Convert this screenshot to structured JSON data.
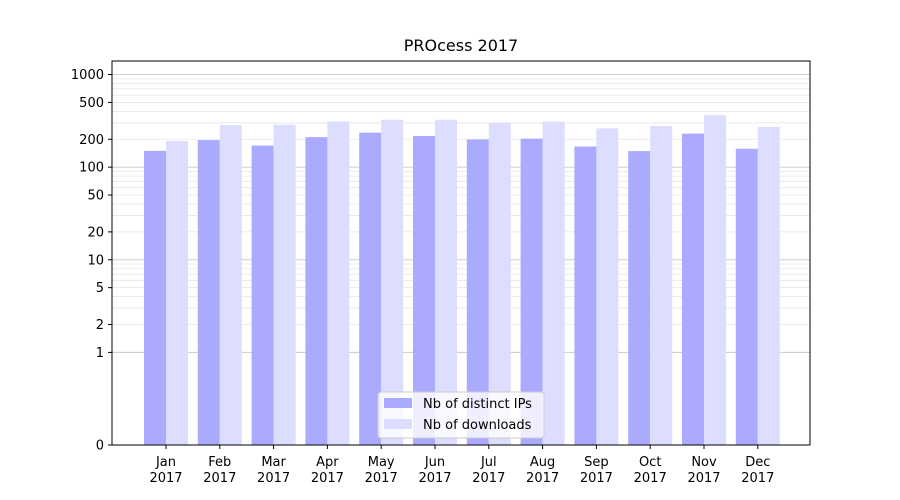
{
  "chart_data": {
    "type": "bar",
    "title": "PROcess 2017",
    "xlabel": "",
    "ylabel": "",
    "yscale": "symlog",
    "ylim": [
      0,
      1400
    ],
    "yticks": [
      0,
      1,
      2,
      5,
      10,
      20,
      50,
      100,
      200,
      500,
      1000
    ],
    "ytick_labels": [
      "0",
      "1",
      "2",
      "5",
      "10",
      "20",
      "50",
      "100",
      "200",
      "500",
      "1000"
    ],
    "grid": true,
    "legend_position": "bottom-center",
    "categories": [
      "Jan\n2017",
      "Feb\n2017",
      "Mar\n2017",
      "Apr\n2017",
      "May\n2017",
      "Jun\n2017",
      "Jul\n2017",
      "Aug\n2017",
      "Sep\n2017",
      "Oct\n2017",
      "Nov\n2017",
      "Dec\n2017"
    ],
    "series": [
      {
        "name": "Nb of distinct IPs",
        "color": "#aaaaff",
        "values": [
          150,
          196,
          171,
          211,
          236,
          217,
          199,
          203,
          167,
          149,
          230,
          158
        ]
      },
      {
        "name": "Nb of downloads",
        "color": "#ddddff",
        "values": [
          191,
          285,
          287,
          312,
          325,
          325,
          302,
          310,
          262,
          278,
          364,
          272
        ]
      }
    ]
  }
}
